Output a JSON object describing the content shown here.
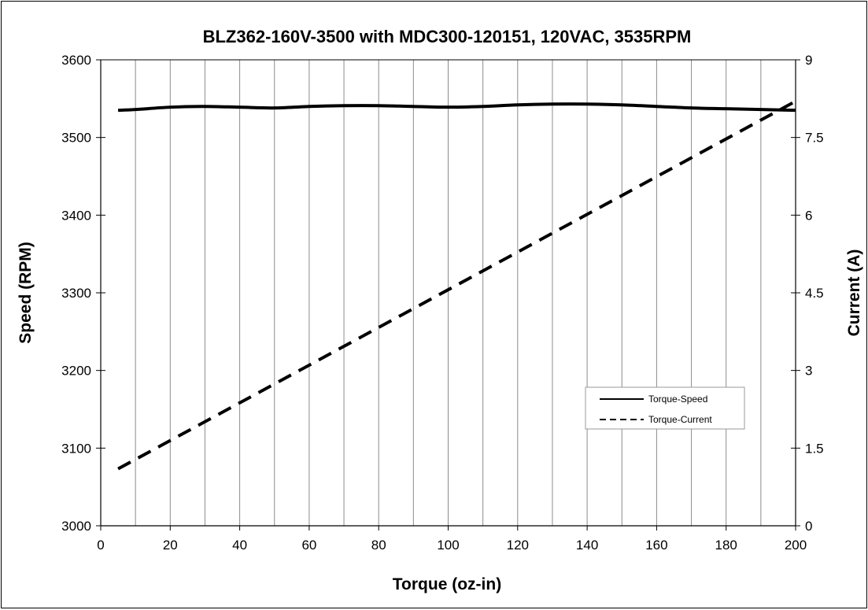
{
  "chart_data": {
    "type": "line",
    "title": "BLZ362-160V-3500 with MDC300-120151, 120VAC, 3535RPM",
    "xlabel": "Torque (oz-in)",
    "ylabel": "Speed (RPM)",
    "y2label": "Current (A)",
    "xlim": [
      0,
      200
    ],
    "ylim": [
      3000,
      3600
    ],
    "y2lim": [
      0,
      9
    ],
    "x_ticks": [
      0,
      20,
      40,
      60,
      80,
      100,
      120,
      140,
      160,
      180,
      200
    ],
    "x_tick_labels": [
      "0",
      "20",
      "40",
      "60",
      "80",
      "100",
      "120",
      "140",
      "160",
      "180",
      "200"
    ],
    "y_ticks": [
      3000,
      3100,
      3200,
      3300,
      3400,
      3500,
      3600
    ],
    "y_tick_labels": [
      "3000",
      "3100",
      "3200",
      "3300",
      "3400",
      "3500",
      "3600"
    ],
    "y2_ticks": [
      0,
      1.5,
      3,
      4.5,
      6,
      7.5,
      9
    ],
    "y2_tick_labels": [
      "0",
      "1.5",
      "3",
      "4.5",
      "6",
      "7.5",
      "9"
    ],
    "x_gridlines": [
      10,
      20,
      30,
      40,
      50,
      60,
      70,
      80,
      90,
      100,
      110,
      120,
      130,
      140,
      150,
      160,
      170,
      180,
      190
    ],
    "grid": "vertical",
    "legend_position": "lower-right",
    "series": [
      {
        "name": "Torque-Speed",
        "axis": "left",
        "style": "solid",
        "color": "#000000",
        "x": [
          5,
          10,
          20,
          30,
          40,
          50,
          60,
          70,
          80,
          90,
          100,
          110,
          120,
          130,
          140,
          150,
          160,
          170,
          180,
          190,
          200
        ],
        "y": [
          3535,
          3536,
          3539,
          3540,
          3539,
          3538,
          3540,
          3541,
          3541,
          3540,
          3539,
          3540,
          3542,
          3543,
          3543,
          3542,
          3540,
          3538,
          3537,
          3536,
          3535
        ]
      },
      {
        "name": "Torque-Current",
        "axis": "right",
        "style": "dashed",
        "color": "#000000",
        "x": [
          5,
          200
        ],
        "y": [
          1.1,
          8.2
        ]
      }
    ]
  }
}
